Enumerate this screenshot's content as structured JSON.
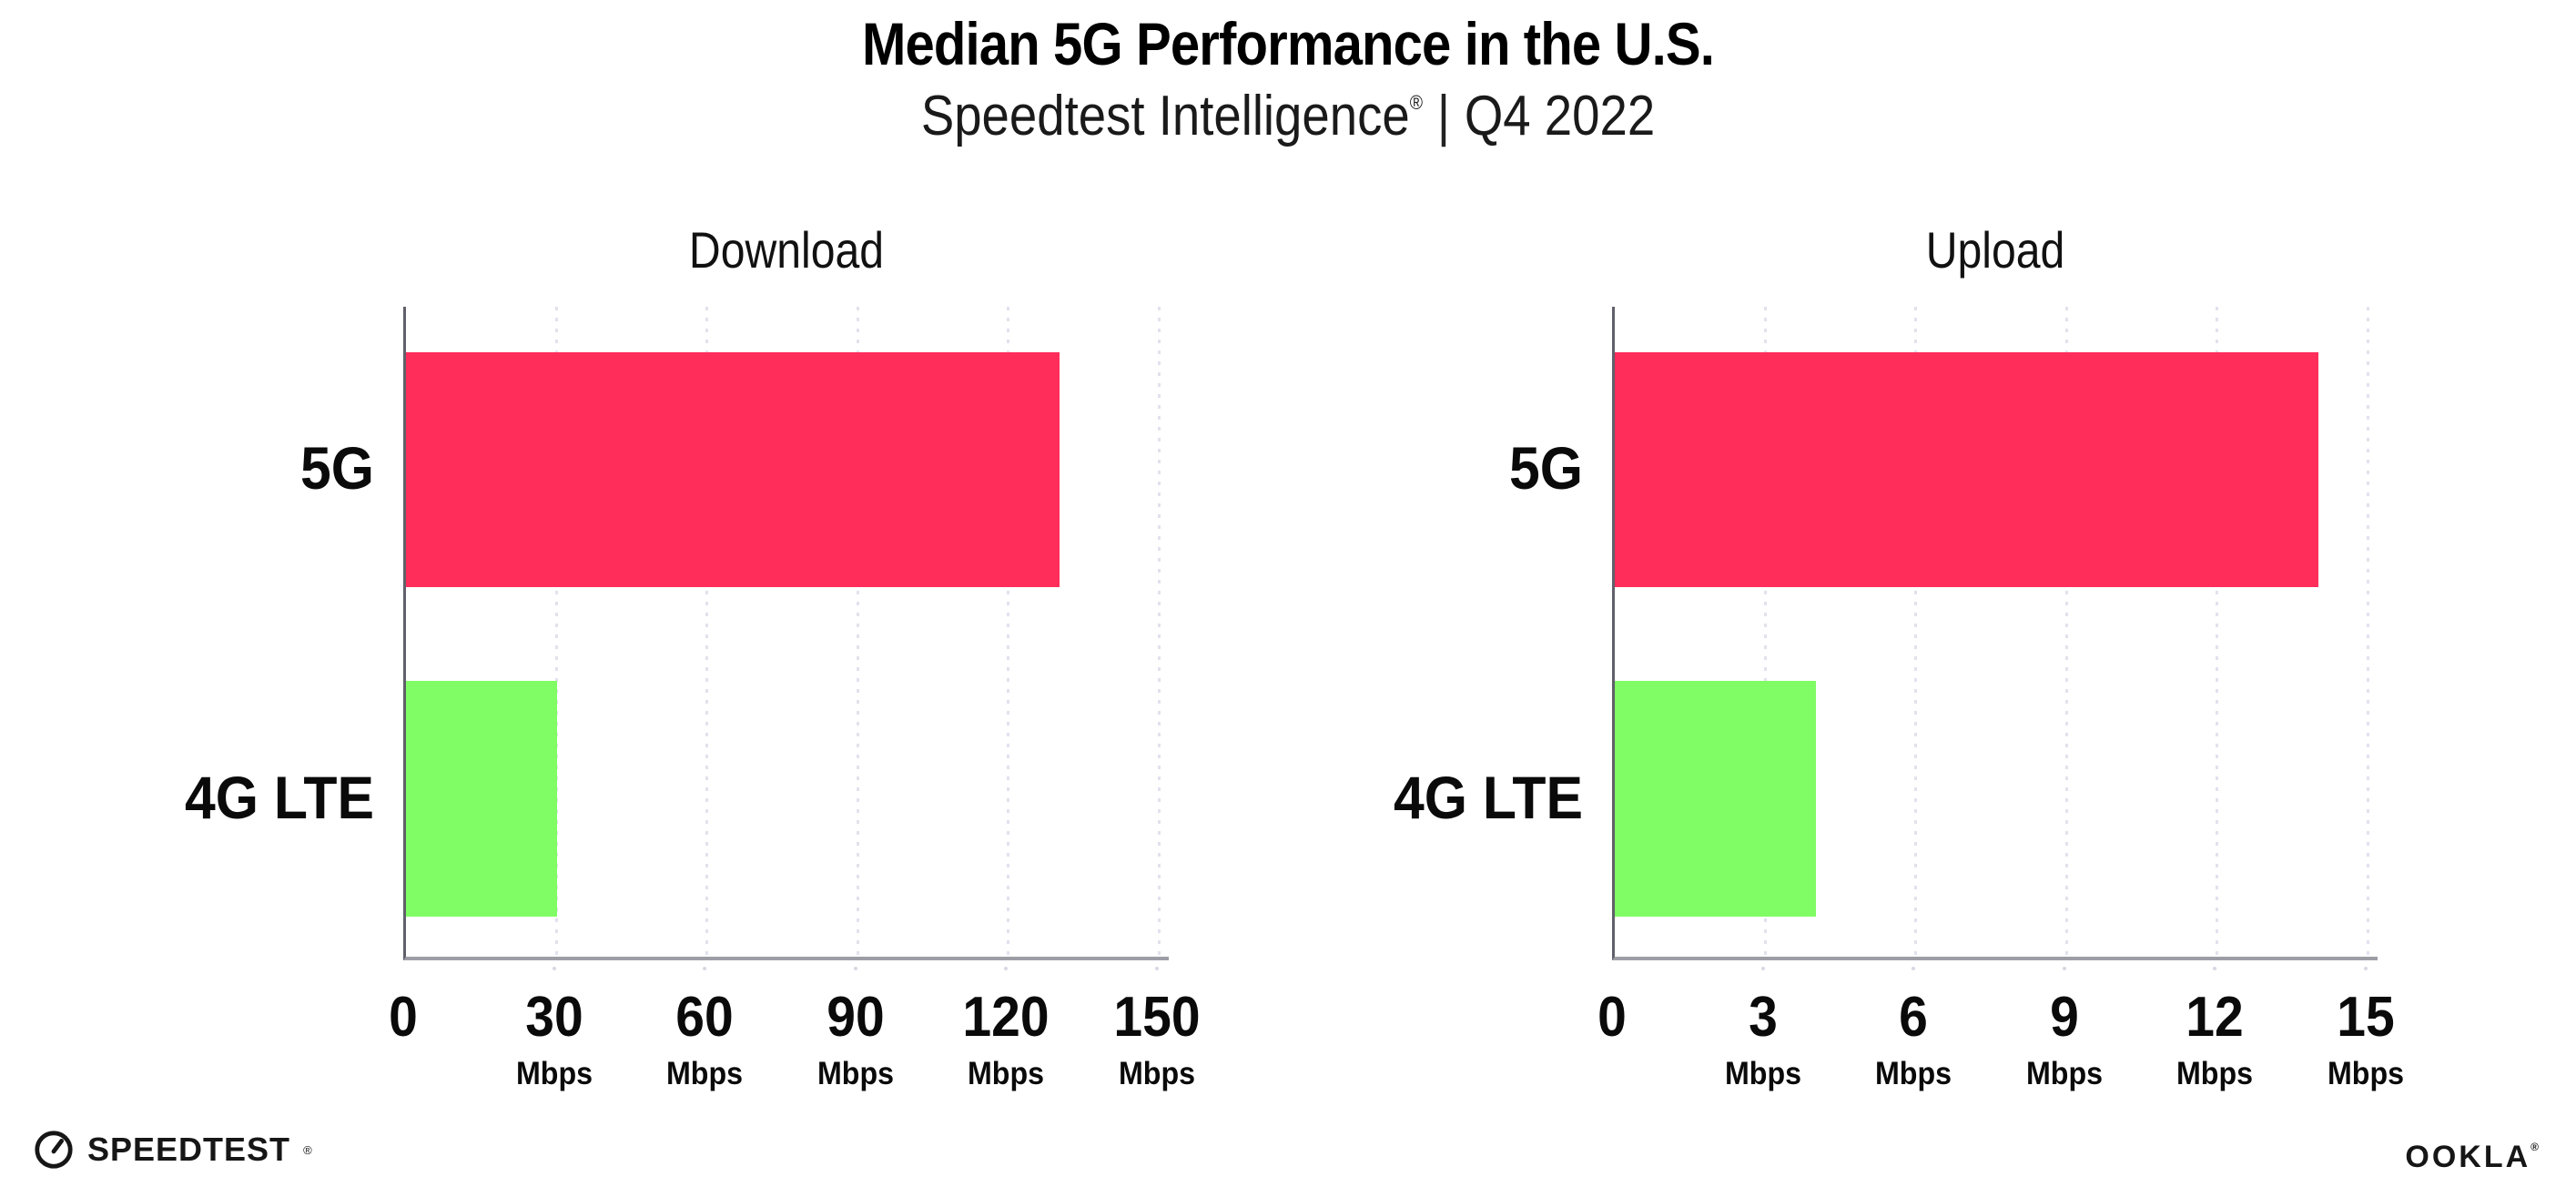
{
  "header": {
    "title": "Median 5G Performance in the U.S.",
    "subtitle_brand": "Speedtest Intelligence",
    "subtitle_reg": "®",
    "subtitle_separator": "|",
    "subtitle_period": "Q4 2022"
  },
  "footer": {
    "speedtest_label": "SPEEDTEST",
    "speedtest_reg": "®",
    "speedtest_icon": "gauge-icon",
    "ookla_label": "OOKLA",
    "ookla_reg": "®"
  },
  "colors": {
    "bar_5g": "#FF2D5A",
    "bar_4g_lte": "#80FC64",
    "gridline": "#E2E2EE",
    "x_axis_line": "#9D9DA6",
    "y_axis_line": "#60606A",
    "text": "#111111"
  },
  "chart_data": [
    {
      "type": "bar",
      "orientation": "horizontal",
      "title": "Download",
      "categories": [
        "5G",
        "4G LTE"
      ],
      "values": [
        130,
        30
      ],
      "unit": "Mbps",
      "xlim": [
        0,
        150
      ],
      "xticks": [
        0,
        30,
        60,
        90,
        120,
        150
      ],
      "grid": "dotted-vertical",
      "legend": "none",
      "bar_colors": [
        "#FF2D5A",
        "#80FC64"
      ]
    },
    {
      "type": "bar",
      "orientation": "horizontal",
      "title": "Upload",
      "categories": [
        "5G",
        "4G LTE"
      ],
      "values": [
        14,
        4
      ],
      "unit": "Mbps",
      "xlim": [
        0,
        15
      ],
      "xticks": [
        0,
        3,
        6,
        9,
        12,
        15
      ],
      "grid": "dotted-vertical",
      "legend": "none",
      "bar_colors": [
        "#FF2D5A",
        "#80FC64"
      ]
    }
  ]
}
